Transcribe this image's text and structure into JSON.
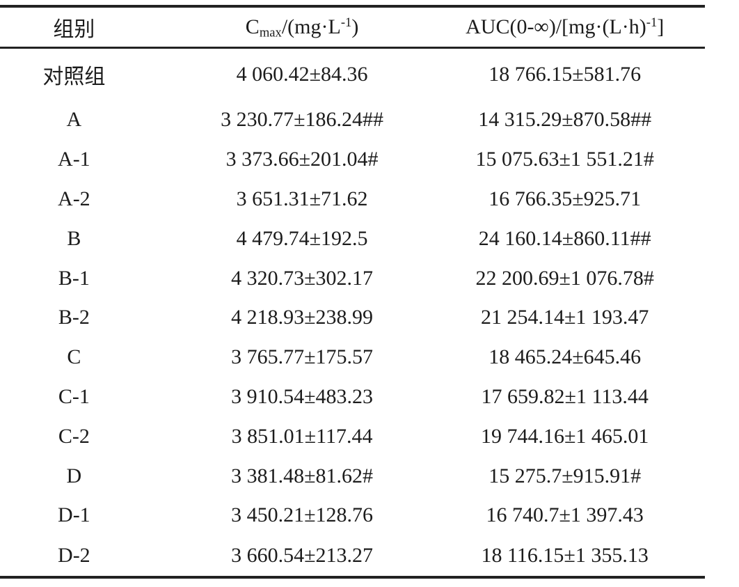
{
  "table": {
    "header": {
      "group_label": "组别",
      "cmax": {
        "base": "C",
        "sub": "max",
        "mid": "/(mg·L",
        "sup": "-1",
        "end": ")"
      },
      "auc": {
        "base": "AUC(0-∞)/[mg·(L·h)",
        "sup": "-1",
        "end": "]"
      }
    },
    "rows": [
      {
        "group": "对照组",
        "cmax": "4 060.42±84.36",
        "auc": "18 766.15±581.76"
      },
      {
        "group": "A",
        "cmax": "3 230.77±186.24##",
        "auc": "14 315.29±870.58##"
      },
      {
        "group": "A-1",
        "cmax": "3 373.66±201.04#",
        "auc": "15 075.63±1 551.21#"
      },
      {
        "group": "A-2",
        "cmax": "3 651.31±71.62",
        "auc": "16 766.35±925.71"
      },
      {
        "group": "B",
        "cmax": "4 479.74±192.5",
        "auc": "24 160.14±860.11##"
      },
      {
        "group": "B-1",
        "cmax": "4 320.73±302.17",
        "auc": "22 200.69±1 076.78#"
      },
      {
        "group": "B-2",
        "cmax": "4 218.93±238.99",
        "auc": "21 254.14±1 193.47"
      },
      {
        "group": "C",
        "cmax": "3 765.77±175.57",
        "auc": "18 465.24±645.46"
      },
      {
        "group": "C-1",
        "cmax": "3 910.54±483.23",
        "auc": "17 659.82±1 113.44"
      },
      {
        "group": "C-2",
        "cmax": "3 851.01±117.44",
        "auc": "19 744.16±1 465.01"
      },
      {
        "group": "D",
        "cmax": "3 381.48±81.62#",
        "auc": "15 275.7±915.91#"
      },
      {
        "group": "D-1",
        "cmax": "3 450.21±128.76",
        "auc": "16 740.7±1 397.43"
      },
      {
        "group": "D-2",
        "cmax": "3 660.54±213.27",
        "auc": "18 116.15±1 355.13"
      }
    ]
  }
}
